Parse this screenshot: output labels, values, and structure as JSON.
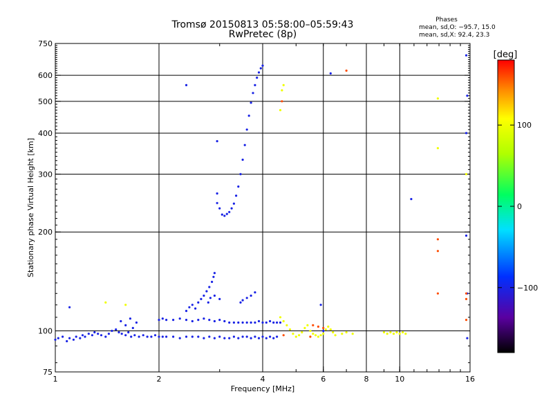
{
  "chart_data": {
    "type": "scatter",
    "title": "Tromsø 20150813 05:58:00–05:59:43",
    "subtitle": "RwPretec (8p)",
    "xlabel": "Frequency [MHz]",
    "ylabel": "Stationary phase Virtual Height [km]",
    "x_scale": "log",
    "y_scale": "log",
    "xlim": [
      1,
      16
    ],
    "ylim": [
      75,
      750
    ],
    "x_ticks": [
      1,
      2,
      4,
      6,
      8,
      10,
      16
    ],
    "x_gridlines": [
      2,
      4,
      6,
      8,
      10
    ],
    "y_ticks": [
      75,
      100,
      200,
      300,
      400,
      500,
      600,
      750
    ],
    "y_gridlines": [
      100,
      200,
      300,
      400,
      500,
      600
    ],
    "grid": true,
    "phase_stats": {
      "heading": "Phases",
      "line1": "mean, sd,O: −95.7, 15.0",
      "line2": "mean, sd,X:  92.4, 23.3"
    },
    "colorbar": {
      "label": "[deg]",
      "min": -180,
      "max": 180,
      "ticks": [
        -100,
        0,
        100
      ],
      "tick_labels": [
        "−100",
        "0",
        "100"
      ]
    },
    "colors": {
      "o_mode": "#1540e0",
      "x_mode": "#f0e020",
      "grid": "#000000"
    },
    "series": [
      {
        "mode": "O",
        "phase": -100,
        "points": [
          [
            1.0,
            94
          ],
          [
            1.02,
            95
          ],
          [
            1.05,
            96
          ],
          [
            1.08,
            93
          ],
          [
            1.1,
            95
          ],
          [
            1.13,
            94
          ],
          [
            1.15,
            96
          ],
          [
            1.18,
            95
          ],
          [
            1.2,
            97
          ],
          [
            1.22,
            96
          ],
          [
            1.25,
            98
          ],
          [
            1.28,
            97
          ],
          [
            1.3,
            99
          ],
          [
            1.33,
            98
          ],
          [
            1.36,
            97
          ],
          [
            1.4,
            96
          ],
          [
            1.43,
            98
          ],
          [
            1.46,
            100
          ],
          [
            1.5,
            101
          ],
          [
            1.53,
            99
          ],
          [
            1.56,
            98
          ],
          [
            1.6,
            97
          ],
          [
            1.63,
            99
          ],
          [
            1.66,
            96
          ],
          [
            1.7,
            97
          ],
          [
            1.75,
            96
          ],
          [
            1.8,
            97
          ],
          [
            1.85,
            96
          ],
          [
            1.9,
            96
          ],
          [
            1.95,
            97
          ],
          [
            2.0,
            96
          ],
          [
            2.05,
            96
          ],
          [
            2.1,
            96
          ],
          [
            2.2,
            96
          ],
          [
            2.3,
            95
          ],
          [
            2.4,
            96
          ],
          [
            2.5,
            96
          ],
          [
            2.6,
            96
          ],
          [
            2.7,
            95
          ],
          [
            2.8,
            96
          ],
          [
            2.9,
            95
          ],
          [
            3.0,
            96
          ],
          [
            3.1,
            95
          ],
          [
            3.2,
            95
          ],
          [
            3.3,
            96
          ],
          [
            3.4,
            95
          ],
          [
            3.5,
            96
          ],
          [
            3.6,
            96
          ],
          [
            3.7,
            95
          ],
          [
            3.8,
            96
          ],
          [
            3.9,
            95
          ],
          [
            4.0,
            96
          ],
          [
            4.1,
            95
          ],
          [
            4.2,
            96
          ],
          [
            4.3,
            95
          ],
          [
            4.4,
            96
          ],
          [
            1.55,
            107
          ],
          [
            1.6,
            104
          ],
          [
            1.65,
            109
          ],
          [
            1.68,
            102
          ],
          [
            1.72,
            106
          ],
          [
            2.0,
            108
          ],
          [
            2.05,
            109
          ],
          [
            2.1,
            108
          ],
          [
            2.2,
            108
          ],
          [
            2.3,
            109
          ],
          [
            2.4,
            108
          ],
          [
            2.5,
            107
          ],
          [
            2.6,
            108
          ],
          [
            2.7,
            109
          ],
          [
            2.8,
            108
          ],
          [
            2.9,
            107
          ],
          [
            3.0,
            108
          ],
          [
            3.1,
            107
          ],
          [
            3.2,
            106
          ],
          [
            3.3,
            106
          ],
          [
            3.4,
            106
          ],
          [
            3.5,
            106
          ],
          [
            3.6,
            106
          ],
          [
            3.7,
            106
          ],
          [
            3.8,
            106
          ],
          [
            3.9,
            107
          ],
          [
            4.0,
            106
          ],
          [
            4.1,
            106
          ],
          [
            4.2,
            107
          ],
          [
            4.3,
            106
          ],
          [
            4.4,
            106
          ],
          [
            4.5,
            106
          ],
          [
            2.4,
            115
          ],
          [
            2.45,
            118
          ],
          [
            2.5,
            120
          ],
          [
            2.55,
            117
          ],
          [
            2.6,
            122
          ],
          [
            2.65,
            125
          ],
          [
            2.7,
            128
          ],
          [
            2.75,
            132
          ],
          [
            2.8,
            136
          ],
          [
            2.85,
            141
          ],
          [
            2.88,
            146
          ],
          [
            2.9,
            150
          ],
          [
            2.78,
            122
          ],
          [
            2.82,
            126
          ],
          [
            2.9,
            128
          ],
          [
            3.0,
            125
          ],
          [
            3.45,
            122
          ],
          [
            3.5,
            124
          ],
          [
            3.6,
            126
          ],
          [
            3.7,
            128
          ],
          [
            3.8,
            131
          ],
          [
            3.05,
            226
          ],
          [
            3.1,
            224
          ],
          [
            3.15,
            227
          ],
          [
            3.2,
            230
          ],
          [
            3.25,
            236
          ],
          [
            3.3,
            244
          ],
          [
            3.35,
            258
          ],
          [
            3.4,
            275
          ],
          [
            3.45,
            300
          ],
          [
            3.5,
            332
          ],
          [
            3.55,
            368
          ],
          [
            3.6,
            410
          ],
          [
            3.65,
            452
          ],
          [
            3.7,
            495
          ],
          [
            3.75,
            530
          ],
          [
            3.8,
            560
          ],
          [
            3.85,
            590
          ],
          [
            3.9,
            612
          ],
          [
            3.95,
            630
          ],
          [
            4.0,
            642
          ],
          [
            2.95,
            245
          ],
          [
            3.0,
            236
          ],
          [
            2.95,
            262
          ],
          [
            2.95,
            378
          ],
          [
            2.4,
            560
          ],
          [
            1.1,
            118
          ],
          [
            6.3,
            608
          ],
          [
            10.8,
            252
          ],
          [
            15.6,
            690
          ],
          [
            15.7,
            520
          ],
          [
            15.6,
            400
          ],
          [
            15.7,
            130
          ],
          [
            15.6,
            195
          ],
          [
            15.7,
            95
          ],
          [
            5.9,
            120
          ],
          [
            6.0,
            100
          ]
        ]
      },
      {
        "mode": "X",
        "phase": 100,
        "points": [
          [
            4.5,
            110
          ],
          [
            4.6,
            107
          ],
          [
            4.7,
            104
          ],
          [
            4.8,
            101
          ],
          [
            4.9,
            98
          ],
          [
            5.0,
            96
          ],
          [
            5.1,
            97
          ],
          [
            5.2,
            99
          ],
          [
            5.3,
            102
          ],
          [
            5.4,
            104
          ],
          [
            5.5,
            100
          ],
          [
            5.6,
            98
          ],
          [
            5.7,
            97
          ],
          [
            5.8,
            96
          ],
          [
            5.9,
            97
          ],
          [
            6.0,
            98
          ],
          [
            6.1,
            101
          ],
          [
            6.2,
            103
          ],
          [
            6.3,
            101
          ],
          [
            6.4,
            99
          ],
          [
            6.5,
            97
          ],
          [
            6.8,
            98
          ],
          [
            7.0,
            99
          ],
          [
            7.3,
            98
          ],
          [
            9.0,
            99
          ],
          [
            9.2,
            98
          ],
          [
            9.4,
            99
          ],
          [
            9.6,
            98
          ],
          [
            9.8,
            99
          ],
          [
            10.0,
            98
          ],
          [
            10.2,
            99
          ],
          [
            10.4,
            98
          ],
          [
            4.6,
            560
          ],
          [
            4.55,
            540
          ],
          [
            4.5,
            470
          ],
          [
            15.6,
            300
          ],
          [
            1.4,
            122
          ],
          [
            1.6,
            120
          ],
          [
            12.9,
            510
          ],
          [
            12.9,
            360
          ]
        ]
      },
      {
        "mode": "X",
        "phase": 160,
        "points": [
          [
            5.6,
            104
          ],
          [
            5.8,
            103
          ],
          [
            6.0,
            102
          ],
          [
            5.5,
            96
          ],
          [
            4.6,
            97
          ],
          [
            4.55,
            500
          ],
          [
            7.0,
            620
          ],
          [
            12.9,
            190
          ],
          [
            12.9,
            175
          ],
          [
            12.9,
            130
          ],
          [
            15.6,
            125
          ],
          [
            15.6,
            108
          ],
          [
            15.6,
            130
          ]
        ]
      }
    ]
  }
}
